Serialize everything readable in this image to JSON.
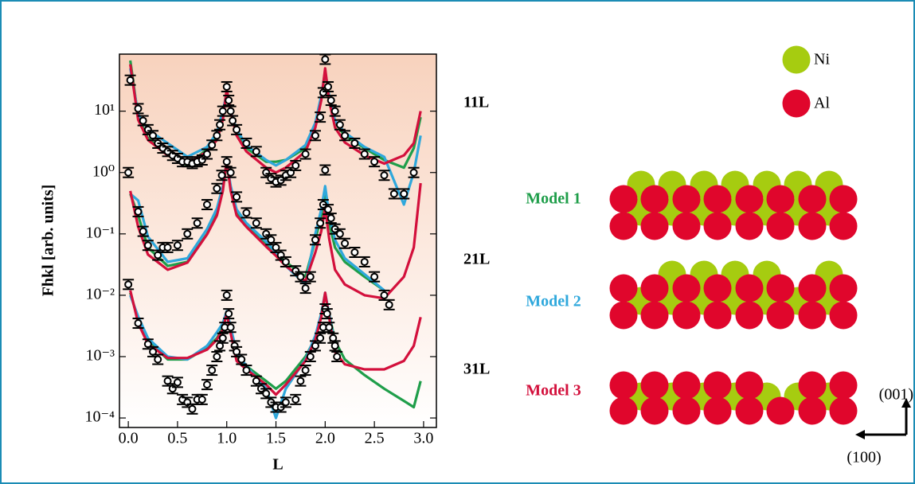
{
  "chart_data": {
    "type": "line",
    "log_y": true,
    "x_label": "L",
    "y_label": "Fhkl [arb. units]",
    "xlim": [
      -0.09,
      3.13
    ],
    "ylim": [
      7e-05,
      85
    ],
    "xticks": [
      {
        "value": 0,
        "label": "0.0"
      },
      0.5,
      {
        "value": 1,
        "label": "1.0"
      },
      1.5,
      {
        "value": 2,
        "label": "2.0"
      },
      2.5,
      {
        "value": 3,
        "label": "3.0"
      }
    ],
    "yticks": [
      {
        "value": 0.0001,
        "label": "10⁻⁴"
      },
      {
        "value": 0.001,
        "label": "10⁻³"
      },
      {
        "value": 0.01,
        "label": "10⁻²"
      },
      {
        "value": 0.1,
        "label": "10⁻¹"
      },
      {
        "value": 1,
        "label": "10⁰"
      },
      {
        "value": 10,
        "label": "10¹"
      }
    ],
    "models": [
      {
        "name": "Model 1",
        "color": "#1f9e4a"
      },
      {
        "name": "Model 2",
        "color": "#2fa8dc"
      },
      {
        "name": "Model 3",
        "color": "#d3103c"
      }
    ],
    "curve_x": [
      0.02,
      0.1,
      0.2,
      0.4,
      0.6,
      0.8,
      0.9,
      0.96,
      1.0,
      1.04,
      1.1,
      1.2,
      1.4,
      1.5,
      1.6,
      1.8,
      1.9,
      1.96,
      2.0,
      2.04,
      2.1,
      2.2,
      2.4,
      2.6,
      2.8,
      2.9,
      2.97
    ],
    "rods": [
      {
        "label": "11L",
        "curves": [
          [
            67,
            8,
            3.6,
            2.0,
            1.3,
            2.4,
            4,
            9,
            20,
            10,
            4.5,
            2.5,
            1.5,
            1.5,
            1.6,
            2.5,
            6,
            17,
            43,
            17,
            6.5,
            4,
            2.5,
            1.6,
            1.2,
            2.5,
            8
          ],
          [
            50,
            9,
            5,
            3,
            1.8,
            2.6,
            4.5,
            10,
            20,
            10,
            5,
            2.8,
            1.6,
            1.3,
            1.6,
            2.8,
            6.5,
            18,
            45,
            18,
            7,
            4.5,
            2.6,
            1.8,
            0.3,
            1.0,
            4
          ],
          [
            58,
            7.2,
            3.4,
            1.9,
            1.4,
            2.2,
            3.4,
            7.2,
            23,
            9.7,
            4.0,
            2.2,
            1.2,
            1.0,
            1.2,
            2.2,
            5.4,
            15,
            50,
            15,
            5.4,
            3.1,
            1.9,
            1.4,
            1.9,
            3.0,
            10
          ]
        ],
        "points": {
          "x": [
            0.02,
            0.1,
            0.15,
            0.2,
            0.25,
            0.3,
            0.35,
            0.4,
            0.45,
            0.5,
            0.55,
            0.6,
            0.65,
            0.7,
            0.75,
            0.8,
            0.85,
            0.9,
            0.93,
            0.96,
            1.0,
            1.02,
            1.04,
            1.06,
            1.1,
            1.2,
            1.3,
            1.4,
            1.45,
            1.5,
            1.55,
            1.6,
            1.65,
            1.7,
            1.8,
            1.9,
            1.95,
            1.98,
            2.0,
            2.03,
            2.06,
            2.1,
            2.15,
            2.2,
            2.3,
            2.4,
            2.5,
            2.6,
            2.7,
            2.8,
            2.9
          ],
          "values": [
            32,
            11,
            7,
            5,
            4,
            3,
            2.5,
            2.2,
            1.9,
            1.7,
            1.5,
            1.5,
            1.4,
            1.5,
            1.6,
            2.0,
            2.8,
            4,
            6,
            10,
            25,
            15,
            10,
            7,
            5,
            3,
            2.2,
            1.0,
            0.8,
            0.7,
            0.75,
            0.9,
            1.0,
            1.3,
            2.0,
            4,
            8,
            20,
            70,
            25,
            15,
            10,
            6,
            4,
            3,
            2,
            1.5,
            0.9,
            0.45,
            0.45,
            1.0
          ]
        }
      },
      {
        "label": "21L",
        "curves": [
          [
            0.45,
            0.2,
            0.06,
            0.03,
            0.035,
            0.1,
            0.22,
            0.55,
            1.4,
            0.55,
            0.22,
            0.14,
            0.07,
            0.05,
            0.035,
            0.02,
            0.08,
            0.2,
            0.5,
            0.15,
            0.06,
            0.035,
            0.02,
            0.012,
            null,
            null,
            null
          ],
          [
            0.45,
            0.35,
            0.09,
            0.035,
            0.04,
            0.12,
            0.26,
            0.6,
            1.5,
            0.6,
            0.25,
            0.15,
            0.075,
            0.05,
            0.03,
            0.015,
            0.1,
            0.25,
            0.6,
            0.2,
            0.08,
            0.04,
            0.022,
            0.012,
            null,
            null,
            null
          ],
          [
            0.5,
            0.13,
            0.046,
            0.026,
            0.034,
            0.098,
            0.2,
            0.5,
            1.6,
            0.5,
            0.2,
            0.13,
            0.062,
            0.044,
            0.03,
            0.017,
            0.05,
            0.11,
            0.27,
            0.084,
            0.026,
            0.015,
            0.01,
            0.0089,
            0.02,
            0.06,
            0.67
          ]
        ],
        "points": {
          "x": [
            0.0,
            0.1,
            0.15,
            0.2,
            0.3,
            0.35,
            0.4,
            0.5,
            0.6,
            0.7,
            0.8,
            0.9,
            0.95,
            1.0,
            1.04,
            1.1,
            1.2,
            1.3,
            1.4,
            1.45,
            1.5,
            1.55,
            1.6,
            1.7,
            1.75,
            1.8,
            1.85,
            1.9,
            1.95,
            1.98,
            2.0,
            2.03,
            2.06,
            2.1,
            2.15,
            2.2,
            2.3,
            2.4,
            2.5,
            2.6,
            2.65
          ],
          "values": [
            1.0,
            0.23,
            0.11,
            0.065,
            0.045,
            0.06,
            0.06,
            0.065,
            0.1,
            0.15,
            0.3,
            0.55,
            0.9,
            1.5,
            1.0,
            0.4,
            0.22,
            0.15,
            0.1,
            0.08,
            0.06,
            0.045,
            0.035,
            0.025,
            0.02,
            0.013,
            0.02,
            0.08,
            0.15,
            0.3,
            1.1,
            0.25,
            0.18,
            0.12,
            0.1,
            0.07,
            0.05,
            0.035,
            0.02,
            0.01,
            0.007
          ]
        }
      },
      {
        "label": "31L",
        "curves": [
          [
            0.011,
            0.004,
            0.0018,
            0.0009,
            0.0009,
            0.0014,
            0.002,
            0.003,
            0.005,
            0.0026,
            0.001,
            0.0007,
            0.0004,
            0.0003,
            0.0004,
            0.001,
            0.002,
            0.005,
            0.01,
            0.005,
            0.0018,
            0.0009,
            0.0005,
            0.0003,
            0.00019,
            0.00015,
            0.0004
          ],
          [
            0.01,
            0.0045,
            0.002,
            0.001,
            0.0009,
            0.0015,
            0.0025,
            0.0035,
            0.0055,
            0.003,
            0.0012,
            0.0007,
            0.0003,
            0.0001,
            0.0003,
            0.0009,
            0.0022,
            0.005,
            0.011,
            0.005,
            0.0015,
            null,
            null,
            null,
            null,
            null,
            null
          ],
          [
            0.012,
            0.0035,
            0.0016,
            0.00095,
            0.00095,
            0.0013,
            0.0019,
            0.0028,
            0.0051,
            0.0024,
            0.00085,
            0.00062,
            0.00035,
            0.00024,
            0.00035,
            0.00085,
            0.0019,
            0.0044,
            0.011,
            0.0044,
            0.0012,
            0.00075,
            0.00062,
            0.00062,
            0.00085,
            0.0015,
            0.0044
          ]
        ],
        "points": {
          "x": [
            0.0,
            0.1,
            0.2,
            0.25,
            0.3,
            0.4,
            0.45,
            0.5,
            0.55,
            0.6,
            0.65,
            0.7,
            0.75,
            0.8,
            0.85,
            0.9,
            0.93,
            0.96,
            0.98,
            1.0,
            1.02,
            1.04,
            1.08,
            1.1,
            1.15,
            1.2,
            1.3,
            1.35,
            1.4,
            1.45,
            1.5,
            1.55,
            1.6,
            1.7,
            1.75,
            1.8,
            1.85,
            1.9,
            1.95,
            1.98,
            2.0,
            2.02,
            2.04,
            2.08,
            2.1,
            2.12
          ],
          "values": [
            0.015,
            0.0035,
            0.0016,
            0.0012,
            0.0009,
            0.0004,
            0.0003,
            0.00038,
            0.0002,
            0.00018,
            0.00014,
            0.0002,
            0.0002,
            0.00035,
            0.0006,
            0.001,
            0.0015,
            0.002,
            0.003,
            0.01,
            0.005,
            0.003,
            0.0015,
            0.0012,
            0.0009,
            0.0006,
            0.0004,
            0.0003,
            0.00025,
            0.00018,
            0.00015,
            0.00015,
            0.00018,
            0.0002,
            0.0004,
            0.0006,
            0.001,
            0.0015,
            0.002,
            0.003,
            0.006,
            0.005,
            0.003,
            0.002,
            0.0015,
            0.001
          ]
        }
      }
    ]
  },
  "diagram": {
    "species": [
      {
        "name": "Ni",
        "color": "#a6cc10"
      },
      {
        "name": "Al",
        "color": "#e0062c"
      }
    ],
    "axes": [
      "(001)",
      "(100)"
    ]
  }
}
